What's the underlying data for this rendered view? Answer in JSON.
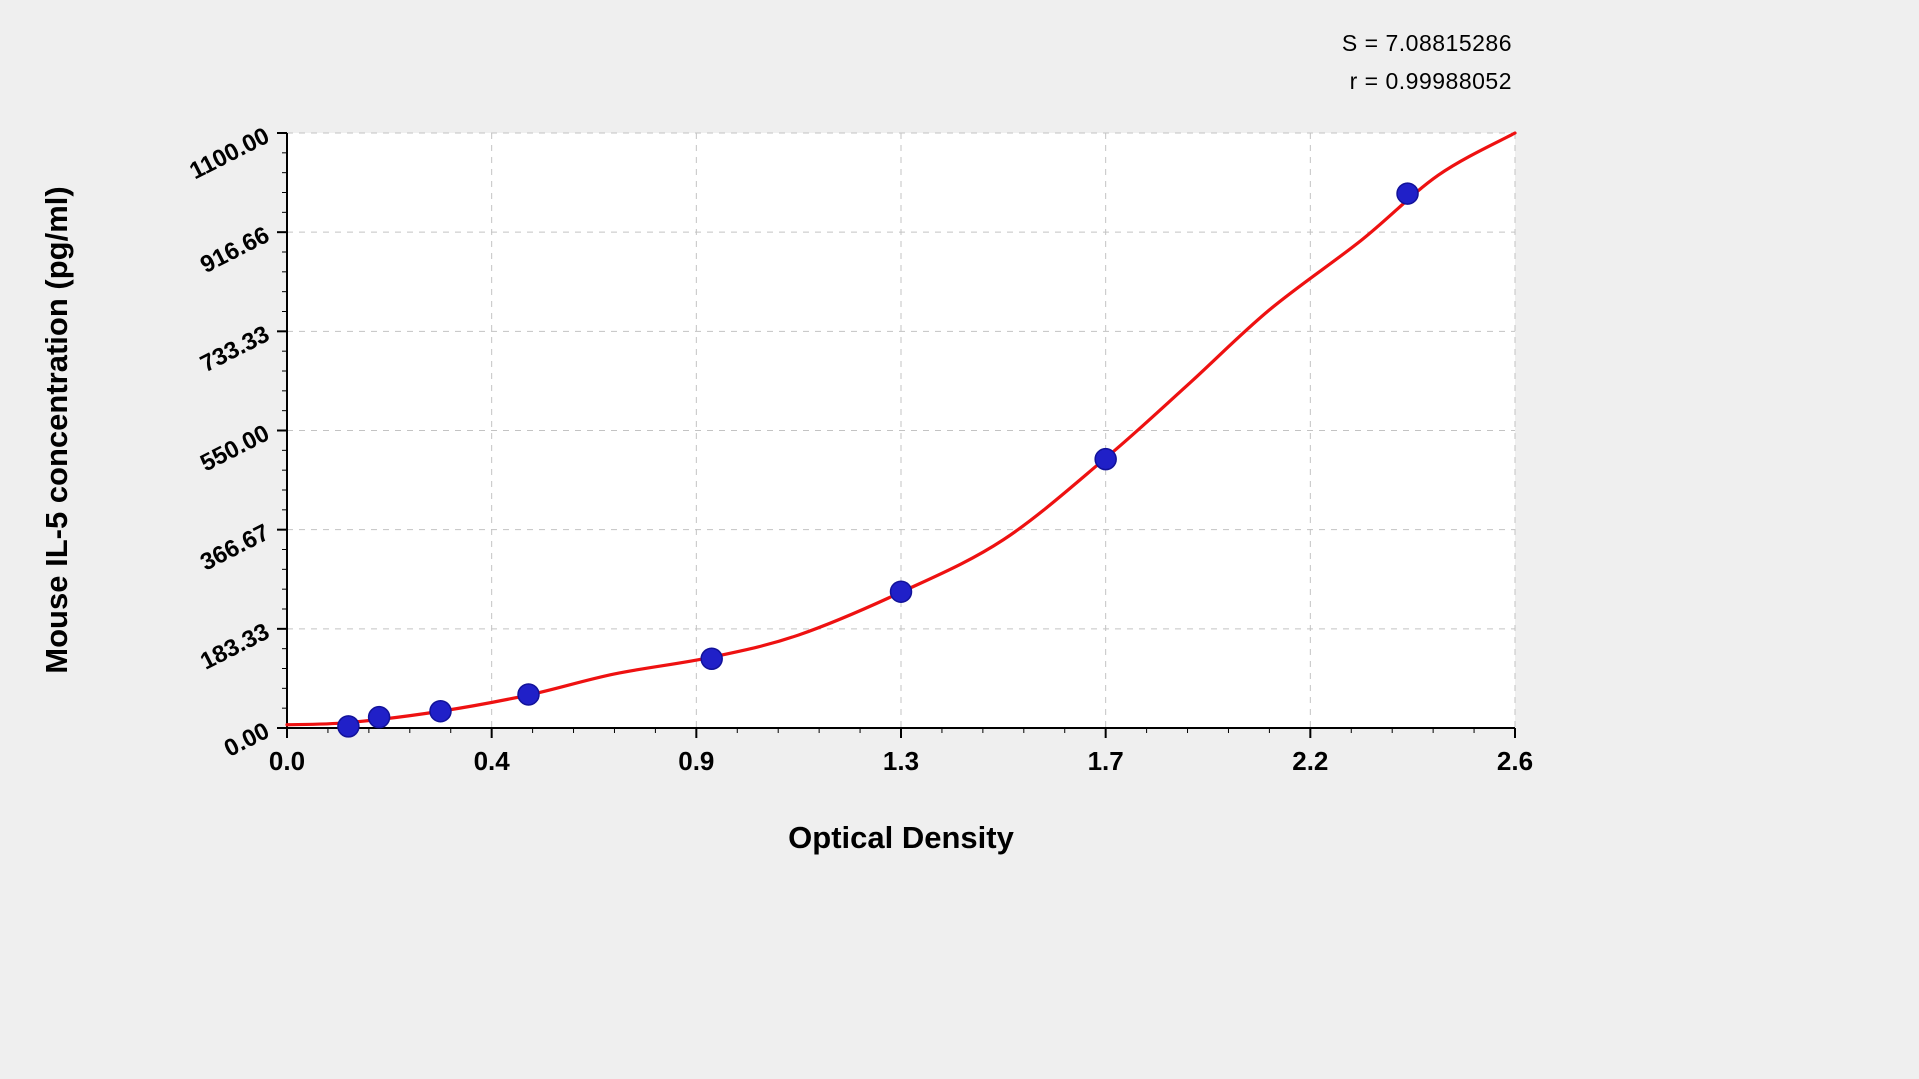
{
  "page": {
    "background": "#efefef"
  },
  "annotations": {
    "s_label": "S = 7.08815286",
    "r_label": "r = 0.99988052"
  },
  "chart_data": {
    "type": "scatter",
    "title": "",
    "xlabel": "Optical Density",
    "ylabel": "Mouse IL-5 concentration (pg/ml)",
    "xlim": [
      0,
      2.6
    ],
    "ylim": [
      0,
      1100
    ],
    "grid": true,
    "legend_position": "none",
    "x_tick_values": [
      0.0,
      0.4,
      0.9,
      1.3,
      1.7,
      2.2,
      2.6
    ],
    "x_tick_labels": [
      "0.0",
      "0.4",
      "0.9",
      "1.3",
      "1.7",
      "2.2",
      "2.6"
    ],
    "y_tick_values": [
      0,
      183.33,
      366.67,
      550.0,
      733.33,
      916.66,
      1100.0
    ],
    "y_tick_labels": [
      "0.00",
      "183.33",
      "366.67",
      "550.00",
      "733.33",
      "916.66",
      "1100.00"
    ],
    "series": [
      {
        "name": "standard-points",
        "type": "scatter",
        "color": "#2020c8",
        "edge_color": "#12129a",
        "marker_radius": 10.5,
        "points": [
          {
            "x": 0.12,
            "y": 3
          },
          {
            "x": 0.18,
            "y": 20
          },
          {
            "x": 0.3,
            "y": 31
          },
          {
            "x": 0.49,
            "y": 62
          },
          {
            "x": 0.93,
            "y": 128
          },
          {
            "x": 1.3,
            "y": 252
          },
          {
            "x": 1.7,
            "y": 497
          },
          {
            "x": 2.39,
            "y": 988
          }
        ]
      },
      {
        "name": "fit-curve",
        "type": "line",
        "color": "#ee1111",
        "width": 3.2,
        "points": [
          {
            "x": 0.0,
            "y": 6
          },
          {
            "x": 0.12,
            "y": 10
          },
          {
            "x": 0.3,
            "y": 31
          },
          {
            "x": 0.49,
            "y": 61
          },
          {
            "x": 0.7,
            "y": 100
          },
          {
            "x": 0.93,
            "y": 131
          },
          {
            "x": 1.1,
            "y": 172
          },
          {
            "x": 1.3,
            "y": 251
          },
          {
            "x": 1.5,
            "y": 348
          },
          {
            "x": 1.7,
            "y": 499
          },
          {
            "x": 1.9,
            "y": 634
          },
          {
            "x": 2.1,
            "y": 773
          },
          {
            "x": 2.3,
            "y": 902
          },
          {
            "x": 2.45,
            "y": 1022
          },
          {
            "x": 2.6,
            "y": 1100
          }
        ]
      }
    ],
    "colors": {
      "curve": "#ee1111",
      "point": "#2020c8",
      "grid": "#c3c3c3",
      "axis": "#000000",
      "plot_background": "#ffffff"
    }
  }
}
